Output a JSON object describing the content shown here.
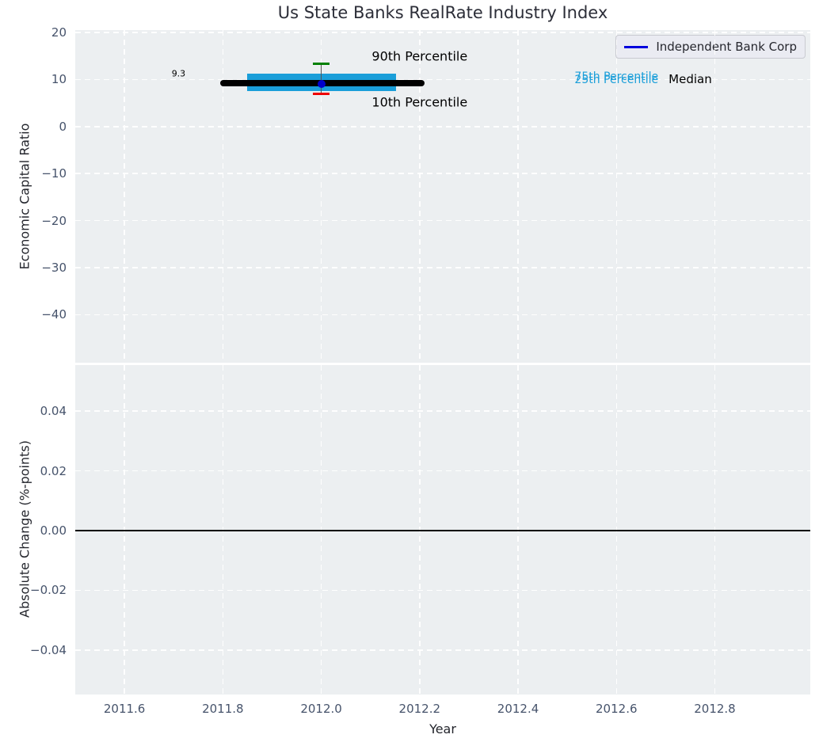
{
  "figure": {
    "title": "Us State Banks RealRate Industry Index",
    "background": "#ffffff",
    "panel_background": "#eceff1",
    "grid_color": "#ffffff",
    "tick_label_color": "#46536b",
    "axis_label_color": "#23252c"
  },
  "chart_data": [
    {
      "type": "boxplot",
      "title": "Us State Banks RealRate Industry Index",
      "ylabel": "Economic Capital Ratio",
      "xlim": [
        2011.5,
        2012.994
      ],
      "ylim": [
        -50.2,
        20.5
      ],
      "grid": true,
      "xticks": [
        2011.6,
        2011.8,
        2012.0,
        2012.2,
        2012.4,
        2012.6,
        2012.8
      ],
      "xticklabels": [
        "2011.6",
        "2011.8",
        "2012.0",
        "2012.2",
        "2012.4",
        "2012.6",
        "2012.8"
      ],
      "yticks": [
        20,
        10,
        0,
        -10,
        -20,
        -30,
        -40
      ],
      "yticklabels": [
        "20",
        "10",
        "0",
        "−10",
        "−20",
        "−30",
        "−40"
      ],
      "legend": {
        "label": "Independent Bank Corp",
        "line_color": "#0000dd",
        "position": "upper right"
      },
      "elements": {
        "median_line": {
          "label": "Median",
          "value": 9.3,
          "x_start": 2011.795,
          "x_end": 2012.21,
          "color": "#000000"
        },
        "iqr_box": {
          "p75": 11.3,
          "p25": 7.6,
          "x_start": 2011.85,
          "x_end": 2012.152,
          "color": "#1a9ed9"
        },
        "whisker": {
          "x": 2012.0,
          "p90": 13.4,
          "p10": 6.9,
          "cap_half_width": 0.017,
          "p90_color": "#008000",
          "p10_color": "#ee0000",
          "line_color": "#555555"
        },
        "company_point": {
          "name": "Independent Bank Corp",
          "x": 2012.0,
          "value": 9.0,
          "color": "#0000cc"
        }
      },
      "annotations": [
        {
          "text": "9.3",
          "x": 2011.71,
          "y": 11.2,
          "color": "#000000",
          "size": 11
        },
        {
          "text": "90th Percentile",
          "x": 2012.2,
          "y": 15.0,
          "color": "#000000",
          "size": 16
        },
        {
          "text": "10th Percentile",
          "x": 2012.2,
          "y": 5.2,
          "color": "#000000",
          "size": 16
        },
        {
          "text": "75th Percentile",
          "x": 2012.6,
          "y": 10.5,
          "color": "#1a9ed9",
          "size": 14
        },
        {
          "text": "25th Percentile",
          "x": 2012.6,
          "y": 9.9,
          "color": "#1a9ed9",
          "size": 14
        },
        {
          "text": "Median",
          "x": 2012.75,
          "y": 10.0,
          "color": "#000000",
          "size": 15
        }
      ]
    },
    {
      "type": "line",
      "ylabel": "Absolute Change (%-points)",
      "xlabel": "Year",
      "xlim": [
        2011.5,
        2012.994
      ],
      "ylim": [
        -0.0549,
        0.0554
      ],
      "grid": true,
      "xticks": [
        2011.6,
        2011.8,
        2012.0,
        2012.2,
        2012.4,
        2012.6,
        2012.8
      ],
      "xticklabels": [
        "2011.6",
        "2011.8",
        "2012.0",
        "2012.2",
        "2012.4",
        "2012.6",
        "2012.8"
      ],
      "yticks": [
        0.04,
        0.02,
        0.0,
        -0.02,
        -0.04
      ],
      "yticklabels": [
        "0.04",
        "0.02",
        "0.00",
        "−0.02",
        "−0.04"
      ],
      "zero_line": {
        "value": 0.0,
        "color": "#000000"
      },
      "series": []
    }
  ]
}
